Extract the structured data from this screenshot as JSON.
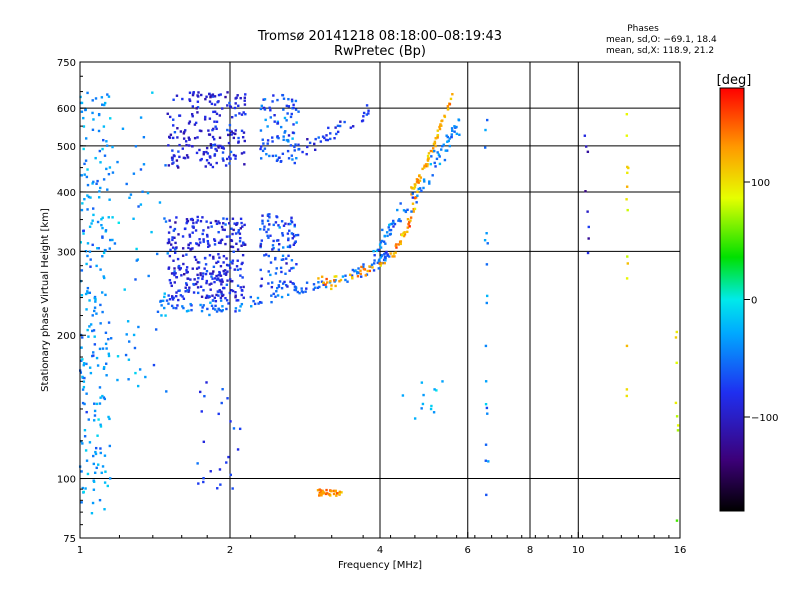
{
  "chart_data": {
    "type": "scatter",
    "title": "Tromsø 20141218 08:18:00–08:19:43",
    "subtitle": "RwPretec (Bp)",
    "stats": {
      "heading": "Phases",
      "line1": "mean, sd,O: −69.1, 18.4",
      "line2": "mean, sd,X: 118.9, 21.2"
    },
    "xlabel": "Frequency [MHz]",
    "ylabel": "Stationary phase Virtual Height [km]",
    "x_scale": "log",
    "y_scale": "log",
    "xlim": [
      1,
      16
    ],
    "ylim": [
      75,
      750
    ],
    "x_ticks": [
      "1",
      "2",
      "4",
      "6",
      "8",
      "10",
      "16"
    ],
    "y_ticks": [
      "75",
      "100",
      "200",
      "300",
      "400",
      "500",
      "600",
      "750"
    ],
    "grid_x": [
      2,
      4,
      6,
      8,
      10
    ],
    "grid_y": [
      100,
      300,
      400,
      500,
      600
    ],
    "colorbar": {
      "label": "[deg]",
      "range": [
        -180,
        180
      ],
      "ticks": [
        "100",
        "0",
        "−100"
      ],
      "tick_values": [
        100,
        0,
        -100
      ]
    },
    "traces": [
      {
        "name": "",
        "f": [
          1.46,
          1.6,
          1.8,
          1.95,
          2.1,
          2.3,
          2.5,
          2.8,
          3.1,
          3.3,
          3.5,
          3.7,
          3.9,
          4.05,
          4.2
        ],
        "h": [
          232,
          229,
          228,
          229,
          231,
          235,
          241,
          250,
          259,
          265,
          271,
          276,
          281,
          288,
          300
        ],
        "phase": -55,
        "spread": 0.025,
        "count": 120
      },
      {
        "name": "",
        "f": [
          3.0,
          3.3,
          3.6,
          3.9,
          4.2,
          4.4,
          4.6,
          4.75
        ],
        "h": [
          258,
          262,
          268,
          276,
          292,
          315,
          350,
          395
        ],
        "phase": 130,
        "spread": 0.02,
        "count": 70
      },
      {
        "name": "",
        "f": [
          4.6,
          4.8,
          5.0,
          5.2,
          5.4,
          5.6
        ],
        "h": [
          395,
          430,
          470,
          520,
          580,
          640
        ],
        "phase": 120,
        "spread": 0.015,
        "count": 60
      },
      {
        "name": "",
        "f": [
          3.9,
          4.1,
          4.3,
          4.6,
          4.9,
          5.2,
          5.5,
          5.75
        ],
        "h": [
          290,
          320,
          350,
          380,
          420,
          470,
          520,
          560
        ],
        "phase": -50,
        "spread": 0.04,
        "count": 90
      },
      {
        "name": "",
        "f": [
          2.6,
          2.9,
          3.2,
          3.5,
          3.8
        ],
        "h": [
          470,
          500,
          530,
          560,
          595
        ],
        "phase": -75,
        "spread": 0.03,
        "count": 40
      }
    ],
    "clusters": [
      {
        "name": "",
        "f": [
          1.5,
          2.15
        ],
        "h": [
          235,
          355
        ],
        "phase": -85,
        "count": 320
      },
      {
        "name": "",
        "f": [
          1.5,
          2.15
        ],
        "h": [
          450,
          650
        ],
        "phase": -90,
        "count": 200
      },
      {
        "name": "",
        "f": [
          2.3,
          2.75
        ],
        "h": [
          250,
          360
        ],
        "phase": -70,
        "count": 110
      },
      {
        "name": "",
        "f": [
          2.3,
          2.75
        ],
        "h": [
          460,
          640
        ],
        "phase": -60,
        "count": 90
      },
      {
        "name": "",
        "f": [
          1.0,
          1.15
        ],
        "h": [
          80,
          650
        ],
        "phase": -35,
        "count": 230
      },
      {
        "name": "",
        "f": [
          1.15,
          1.5
        ],
        "h": [
          150,
          650
        ],
        "phase": -40,
        "count": 60
      },
      {
        "name": "",
        "f": [
          1.7,
          2.1
        ],
        "h": [
          95,
          160
        ],
        "phase": -75,
        "count": 25
      },
      {
        "name": "",
        "f": [
          3.0,
          3.35
        ],
        "h": [
          92,
          95
        ],
        "phase": 135,
        "count": 35
      },
      {
        "name": "",
        "f": [
          4.4,
          5.7
        ],
        "h": [
          130,
          160
        ],
        "phase": -30,
        "count": 12
      },
      {
        "name": "",
        "f": [
          6.5,
          6.6
        ],
        "h": [
          85,
          620
        ],
        "phase": -40,
        "count": 18
      },
      {
        "name": "",
        "f": [
          12.5,
          12.6
        ],
        "h": [
          120,
          650
        ],
        "phase": 90,
        "count": 14
      },
      {
        "name": "",
        "f": [
          15.7,
          15.9
        ],
        "h": [
          80,
          300
        ],
        "phase": 80,
        "count": 8
      },
      {
        "name": "",
        "f": [
          10.3,
          10.5
        ],
        "h": [
          270,
          550
        ],
        "phase": -100,
        "count": 8
      }
    ]
  }
}
